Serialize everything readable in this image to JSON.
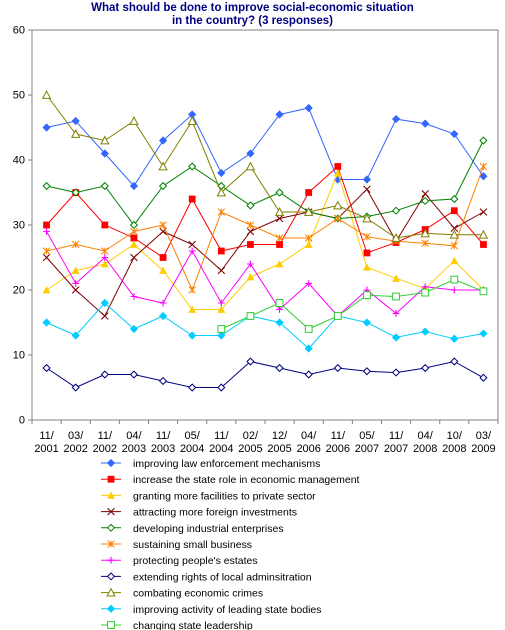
{
  "chart_data": {
    "type": "line",
    "title": [
      "What should be done to improve social-economic situation",
      "in the country? (3 responses)"
    ],
    "xlabel": "",
    "ylabel": "",
    "ylim": [
      0,
      60
    ],
    "yticks": [
      0,
      10,
      20,
      30,
      40,
      50,
      60
    ],
    "grid": false,
    "legend_position": "bottom",
    "categories": [
      [
        "11/",
        "2001"
      ],
      [
        "03/",
        "2002"
      ],
      [
        "11/",
        "2002"
      ],
      [
        "04/",
        "2003"
      ],
      [
        "11/",
        "2003"
      ],
      [
        "05/",
        "2004"
      ],
      [
        "11/",
        "2004"
      ],
      [
        "02/",
        "2005"
      ],
      [
        "12/",
        "2005"
      ],
      [
        "04/",
        "2006"
      ],
      [
        "11/",
        "2006"
      ],
      [
        "05/",
        "2007"
      ],
      [
        "11/",
        "2007"
      ],
      [
        "04/",
        "2008"
      ],
      [
        "10/",
        "2008"
      ],
      [
        "03/",
        "2009"
      ]
    ],
    "series": [
      {
        "name": "improving law enforcement mechanisms",
        "color": "#3366ff",
        "marker": "diamond",
        "values": [
          45,
          46,
          41,
          36,
          43,
          47,
          38,
          41,
          47,
          48,
          37,
          37,
          46.3,
          45.6,
          44,
          37.5
        ]
      },
      {
        "name": "increase the state role in economic management",
        "color": "#ff0000",
        "marker": "square",
        "values": [
          30,
          35,
          30,
          28,
          25,
          34,
          26,
          27,
          27,
          35,
          39,
          25.7,
          27.3,
          29.3,
          32.2,
          27
        ]
      },
      {
        "name": "granting more facilities to private sector",
        "color": "#ffcc00",
        "marker": "triangle",
        "values": [
          20,
          23,
          24,
          27,
          23,
          17,
          17,
          22,
          24,
          27,
          38,
          23.5,
          21.8,
          20.2,
          24.5,
          20
        ]
      },
      {
        "name": "attracting more foreign investments",
        "color": "#800000",
        "marker": "x",
        "values": [
          25,
          20,
          16,
          25,
          29,
          27,
          23,
          29,
          31,
          32,
          31,
          35.5,
          27.5,
          34.8,
          29.5,
          32
        ]
      },
      {
        "name": "developing industrial enterprises",
        "color": "#008000",
        "marker": "diamond-open",
        "values": [
          36,
          35,
          36,
          30,
          36,
          39,
          36,
          33,
          35,
          32,
          31,
          31.3,
          32.2,
          33.7,
          34,
          43
        ]
      },
      {
        "name": "sustaining small business",
        "color": "#ff8000",
        "marker": "star",
        "values": [
          26,
          27,
          26,
          29,
          30,
          20,
          32,
          30,
          28,
          28,
          31,
          28.2,
          27.5,
          27.2,
          26.8,
          39
        ]
      },
      {
        "name": "protecting people's estates",
        "color": "#ff00ff",
        "marker": "plus",
        "values": [
          29,
          21,
          25,
          19,
          18,
          26,
          18,
          24,
          17,
          21,
          16,
          20,
          16.4,
          20.5,
          20,
          20
        ]
      },
      {
        "name": "extending rights of local adminsitration",
        "color": "#000080",
        "marker": "diamond-open",
        "values": [
          8,
          5,
          7,
          7,
          6,
          5,
          5,
          9,
          8,
          7,
          8,
          7.5,
          7.3,
          8,
          9,
          6.5
        ]
      },
      {
        "name": "combating economic crimes",
        "color": "#808000",
        "marker": "triangle-open",
        "values": [
          50,
          44,
          43,
          46,
          39,
          46,
          35,
          39,
          32,
          32,
          33,
          31,
          28,
          28.7,
          28.5,
          28.5
        ]
      },
      {
        "name": "improving activity of leading state bodies",
        "color": "#00ccff",
        "marker": "diamond",
        "values": [
          15,
          13,
          18,
          14,
          16,
          13,
          13,
          16,
          15,
          11,
          16,
          15,
          12.7,
          13.6,
          12.5,
          13.3
        ]
      },
      {
        "name": "changing state leadership",
        "color": "#33cc33",
        "marker": "square-open",
        "values": [
          null,
          null,
          null,
          null,
          null,
          null,
          14,
          16,
          18,
          14,
          16,
          19.2,
          19,
          19.6,
          21.6,
          19.8
        ]
      }
    ]
  }
}
